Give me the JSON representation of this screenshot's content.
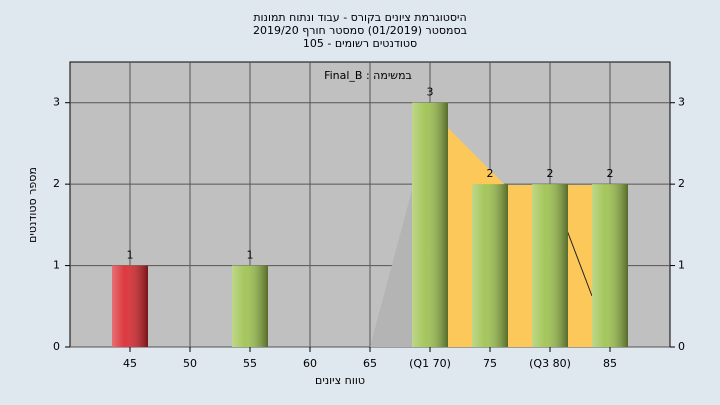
{
  "chart_data": {
    "type": "bar",
    "title": "היסטוגרמת ציונים בקורס - עבוד ונתוח תמונות",
    "subtitle": "בסמסטר  (01/2019)  סמסטר חורף 2019/20",
    "subtitle2": "סטודנטים רשומים - 105",
    "annotation": "Final_B : במשימה",
    "x_label": "טווח ציונים",
    "y_label": "מספר סטודנטים",
    "categories": [
      "45",
      "50",
      "55",
      "60",
      "65",
      "(Q1 70)",
      "75",
      "(Q3 80)",
      "85"
    ],
    "values": [
      1,
      0,
      1,
      0,
      0,
      3,
      2,
      2,
      2
    ],
    "colors": [
      "#d8232a",
      "#9bc14a",
      "#9bc14a",
      "#9bc14a",
      "#9bc14a",
      "#9bc14a",
      "#9bc14a",
      "#9bc14a",
      "#9bc14a"
    ],
    "ylim": [
      0,
      3.5
    ],
    "yticks": [
      0,
      1,
      2,
      3
    ],
    "grid": true
  }
}
